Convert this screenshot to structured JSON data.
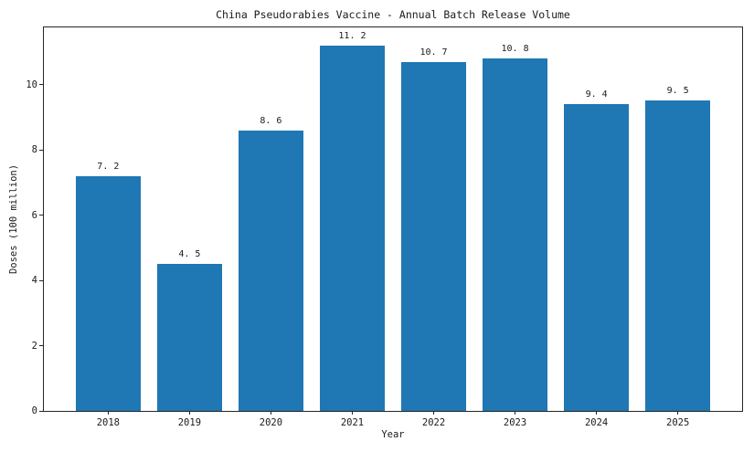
{
  "chart_data": {
    "type": "bar",
    "title": "China Pseudorabies Vaccine - Annual Batch Release Volume",
    "xlabel": "Year",
    "ylabel": "Doses (100 million)",
    "categories": [
      "2018",
      "2019",
      "2020",
      "2021",
      "2022",
      "2023",
      "2024",
      "2025"
    ],
    "values": [
      7.2,
      4.5,
      8.6,
      11.2,
      10.7,
      10.8,
      9.4,
      9.5
    ],
    "value_labels": [
      "7. 2",
      "4. 5",
      "8. 6",
      "11. 2",
      "10. 7",
      "10. 8",
      "9. 4",
      "9. 5"
    ],
    "yticks": [
      0,
      2,
      4,
      6,
      8,
      10
    ],
    "ylim": [
      0,
      11.75
    ],
    "bar_width_fraction": 0.8,
    "x_margin_fraction": 0.39,
    "bar_color": "#1f77b4",
    "axis_color": "#262626",
    "text_color": "#1a1a1a",
    "grid": false,
    "legend": null
  }
}
